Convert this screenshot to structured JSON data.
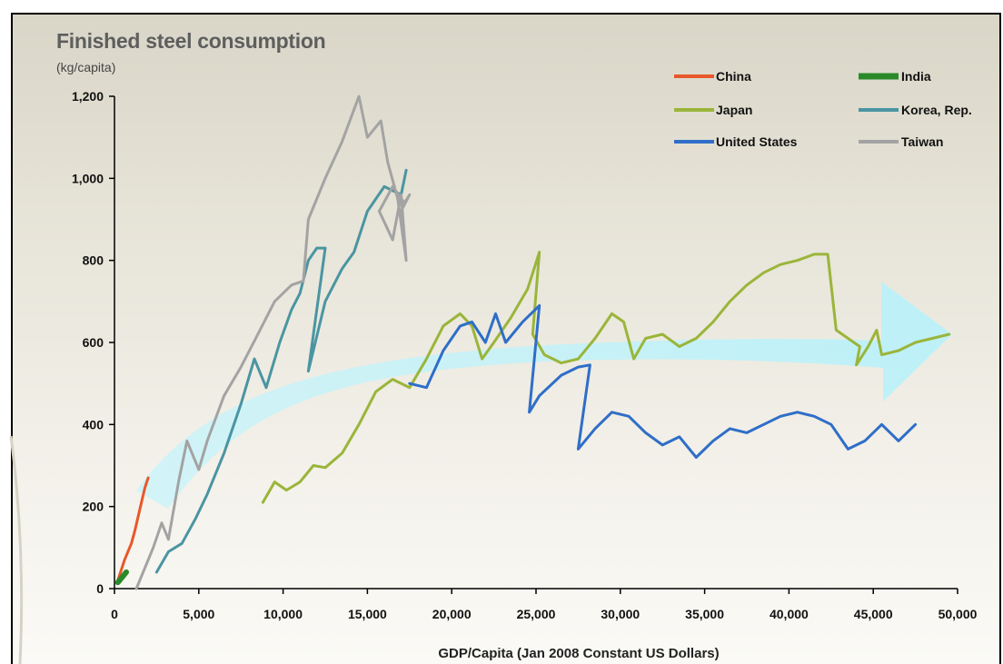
{
  "chart_data": {
    "type": "line",
    "title": "Finished steel consumption",
    "ylabel": "(kg/capita)",
    "xlabel": "GDP/Capita (Jan 2008 Constant US Dollars)",
    "xlim": [
      0,
      50000
    ],
    "ylim": [
      0,
      1200
    ],
    "x_ticks": [
      0,
      5000,
      10000,
      15000,
      20000,
      25000,
      30000,
      35000,
      40000,
      45000,
      50000
    ],
    "x_tick_labels": [
      "0",
      "5,000",
      "10,000",
      "15,000",
      "20,000",
      "25,000",
      "30,000",
      "35,000",
      "40,000",
      "45,000",
      "50,000"
    ],
    "y_ticks": [
      0,
      200,
      400,
      600,
      800,
      1000,
      1200
    ],
    "y_tick_labels": [
      "0",
      "200",
      "400",
      "600",
      "800",
      "1,000",
      "1,200"
    ],
    "grid": false,
    "legend_position": "top-right",
    "series": [
      {
        "name": "China",
        "color": "#e8582a",
        "points": [
          [
            200,
            20
          ],
          [
            400,
            45
          ],
          [
            600,
            70
          ],
          [
            800,
            90
          ],
          [
            1000,
            110
          ],
          [
            1200,
            140
          ],
          [
            1400,
            175
          ],
          [
            1600,
            210
          ],
          [
            1800,
            245
          ],
          [
            2000,
            270
          ]
        ]
      },
      {
        "name": "India",
        "color": "#2a8a2a",
        "points": [
          [
            200,
            15
          ],
          [
            300,
            20
          ],
          [
            400,
            25
          ],
          [
            500,
            30
          ],
          [
            600,
            35
          ],
          [
            700,
            40
          ]
        ]
      },
      {
        "name": "Japan",
        "color": "#9ab53a",
        "points": [
          [
            8800,
            210
          ],
          [
            9500,
            260
          ],
          [
            10200,
            240
          ],
          [
            11000,
            260
          ],
          [
            11800,
            300
          ],
          [
            12500,
            295
          ],
          [
            13500,
            330
          ],
          [
            14500,
            400
          ],
          [
            15500,
            480
          ],
          [
            16500,
            510
          ],
          [
            17500,
            490
          ],
          [
            18500,
            560
          ],
          [
            19500,
            640
          ],
          [
            20500,
            670
          ],
          [
            21200,
            640
          ],
          [
            21800,
            560
          ],
          [
            22500,
            600
          ],
          [
            23500,
            660
          ],
          [
            24500,
            730
          ],
          [
            25200,
            820
          ],
          [
            24800,
            620
          ],
          [
            25500,
            570
          ],
          [
            26500,
            550
          ],
          [
            27500,
            560
          ],
          [
            28500,
            610
          ],
          [
            29500,
            670
          ],
          [
            30200,
            650
          ],
          [
            30800,
            560
          ],
          [
            31500,
            610
          ],
          [
            32500,
            620
          ],
          [
            33500,
            590
          ],
          [
            34500,
            610
          ],
          [
            35500,
            650
          ],
          [
            36500,
            700
          ],
          [
            37500,
            740
          ],
          [
            38500,
            770
          ],
          [
            39500,
            790
          ],
          [
            40500,
            800
          ],
          [
            41500,
            815
          ],
          [
            42300,
            815
          ],
          [
            42800,
            630
          ],
          [
            43500,
            610
          ],
          [
            44200,
            590
          ],
          [
            44000,
            545
          ],
          [
            44700,
            590
          ],
          [
            45200,
            630
          ],
          [
            45500,
            570
          ],
          [
            46500,
            580
          ],
          [
            47500,
            600
          ],
          [
            48500,
            610
          ],
          [
            49500,
            620
          ]
        ]
      },
      {
        "name": "Korea, Rep.",
        "color": "#4a95a2",
        "points": [
          [
            2500,
            40
          ],
          [
            3200,
            90
          ],
          [
            4000,
            110
          ],
          [
            4800,
            170
          ],
          [
            5500,
            230
          ],
          [
            6500,
            330
          ],
          [
            7500,
            450
          ],
          [
            8300,
            560
          ],
          [
            9000,
            490
          ],
          [
            9800,
            600
          ],
          [
            10500,
            680
          ],
          [
            11000,
            720
          ],
          [
            11500,
            800
          ],
          [
            12000,
            830
          ],
          [
            12500,
            830
          ],
          [
            11500,
            530
          ],
          [
            12500,
            700
          ],
          [
            13500,
            780
          ],
          [
            14200,
            820
          ],
          [
            15000,
            920
          ],
          [
            16000,
            980
          ],
          [
            17000,
            960
          ],
          [
            17300,
            1020
          ]
        ]
      },
      {
        "name": "United States",
        "color": "#2f6ec8",
        "points": [
          [
            17500,
            500
          ],
          [
            18500,
            490
          ],
          [
            19500,
            580
          ],
          [
            20500,
            640
          ],
          [
            21200,
            650
          ],
          [
            22000,
            600
          ],
          [
            22600,
            670
          ],
          [
            23200,
            600
          ],
          [
            24200,
            650
          ],
          [
            25200,
            690
          ],
          [
            24600,
            430
          ],
          [
            25200,
            470
          ],
          [
            26500,
            520
          ],
          [
            27500,
            540
          ],
          [
            28200,
            545
          ],
          [
            27500,
            340
          ],
          [
            28500,
            390
          ],
          [
            29500,
            430
          ],
          [
            30500,
            420
          ],
          [
            31500,
            380
          ],
          [
            32500,
            350
          ],
          [
            33500,
            370
          ],
          [
            34500,
            320
          ],
          [
            35500,
            360
          ],
          [
            36500,
            390
          ],
          [
            37500,
            380
          ],
          [
            38500,
            400
          ],
          [
            39500,
            420
          ],
          [
            40500,
            430
          ],
          [
            41500,
            420
          ],
          [
            42500,
            400
          ],
          [
            43500,
            340
          ],
          [
            44500,
            360
          ],
          [
            45500,
            400
          ],
          [
            46500,
            360
          ],
          [
            47500,
            400
          ]
        ]
      },
      {
        "name": "Taiwan",
        "color": "#a3a3a3",
        "points": [
          [
            1300,
            0
          ],
          [
            1800,
            50
          ],
          [
            2300,
            100
          ],
          [
            2800,
            160
          ],
          [
            3200,
            120
          ],
          [
            3800,
            260
          ],
          [
            4300,
            360
          ],
          [
            5000,
            290
          ],
          [
            5500,
            360
          ],
          [
            6500,
            470
          ],
          [
            7500,
            540
          ],
          [
            8500,
            620
          ],
          [
            9500,
            700
          ],
          [
            10500,
            740
          ],
          [
            11200,
            750
          ],
          [
            11500,
            900
          ],
          [
            12500,
            1000
          ],
          [
            13500,
            1090
          ],
          [
            14500,
            1200
          ],
          [
            15000,
            1100
          ],
          [
            15800,
            1140
          ],
          [
            16200,
            1040
          ],
          [
            16800,
            950
          ],
          [
            17300,
            800
          ],
          [
            17000,
            960
          ],
          [
            16500,
            850
          ],
          [
            15700,
            920
          ],
          [
            16500,
            980
          ],
          [
            17200,
            940
          ],
          [
            17500,
            960
          ],
          [
            17000,
            920
          ]
        ]
      }
    ]
  }
}
